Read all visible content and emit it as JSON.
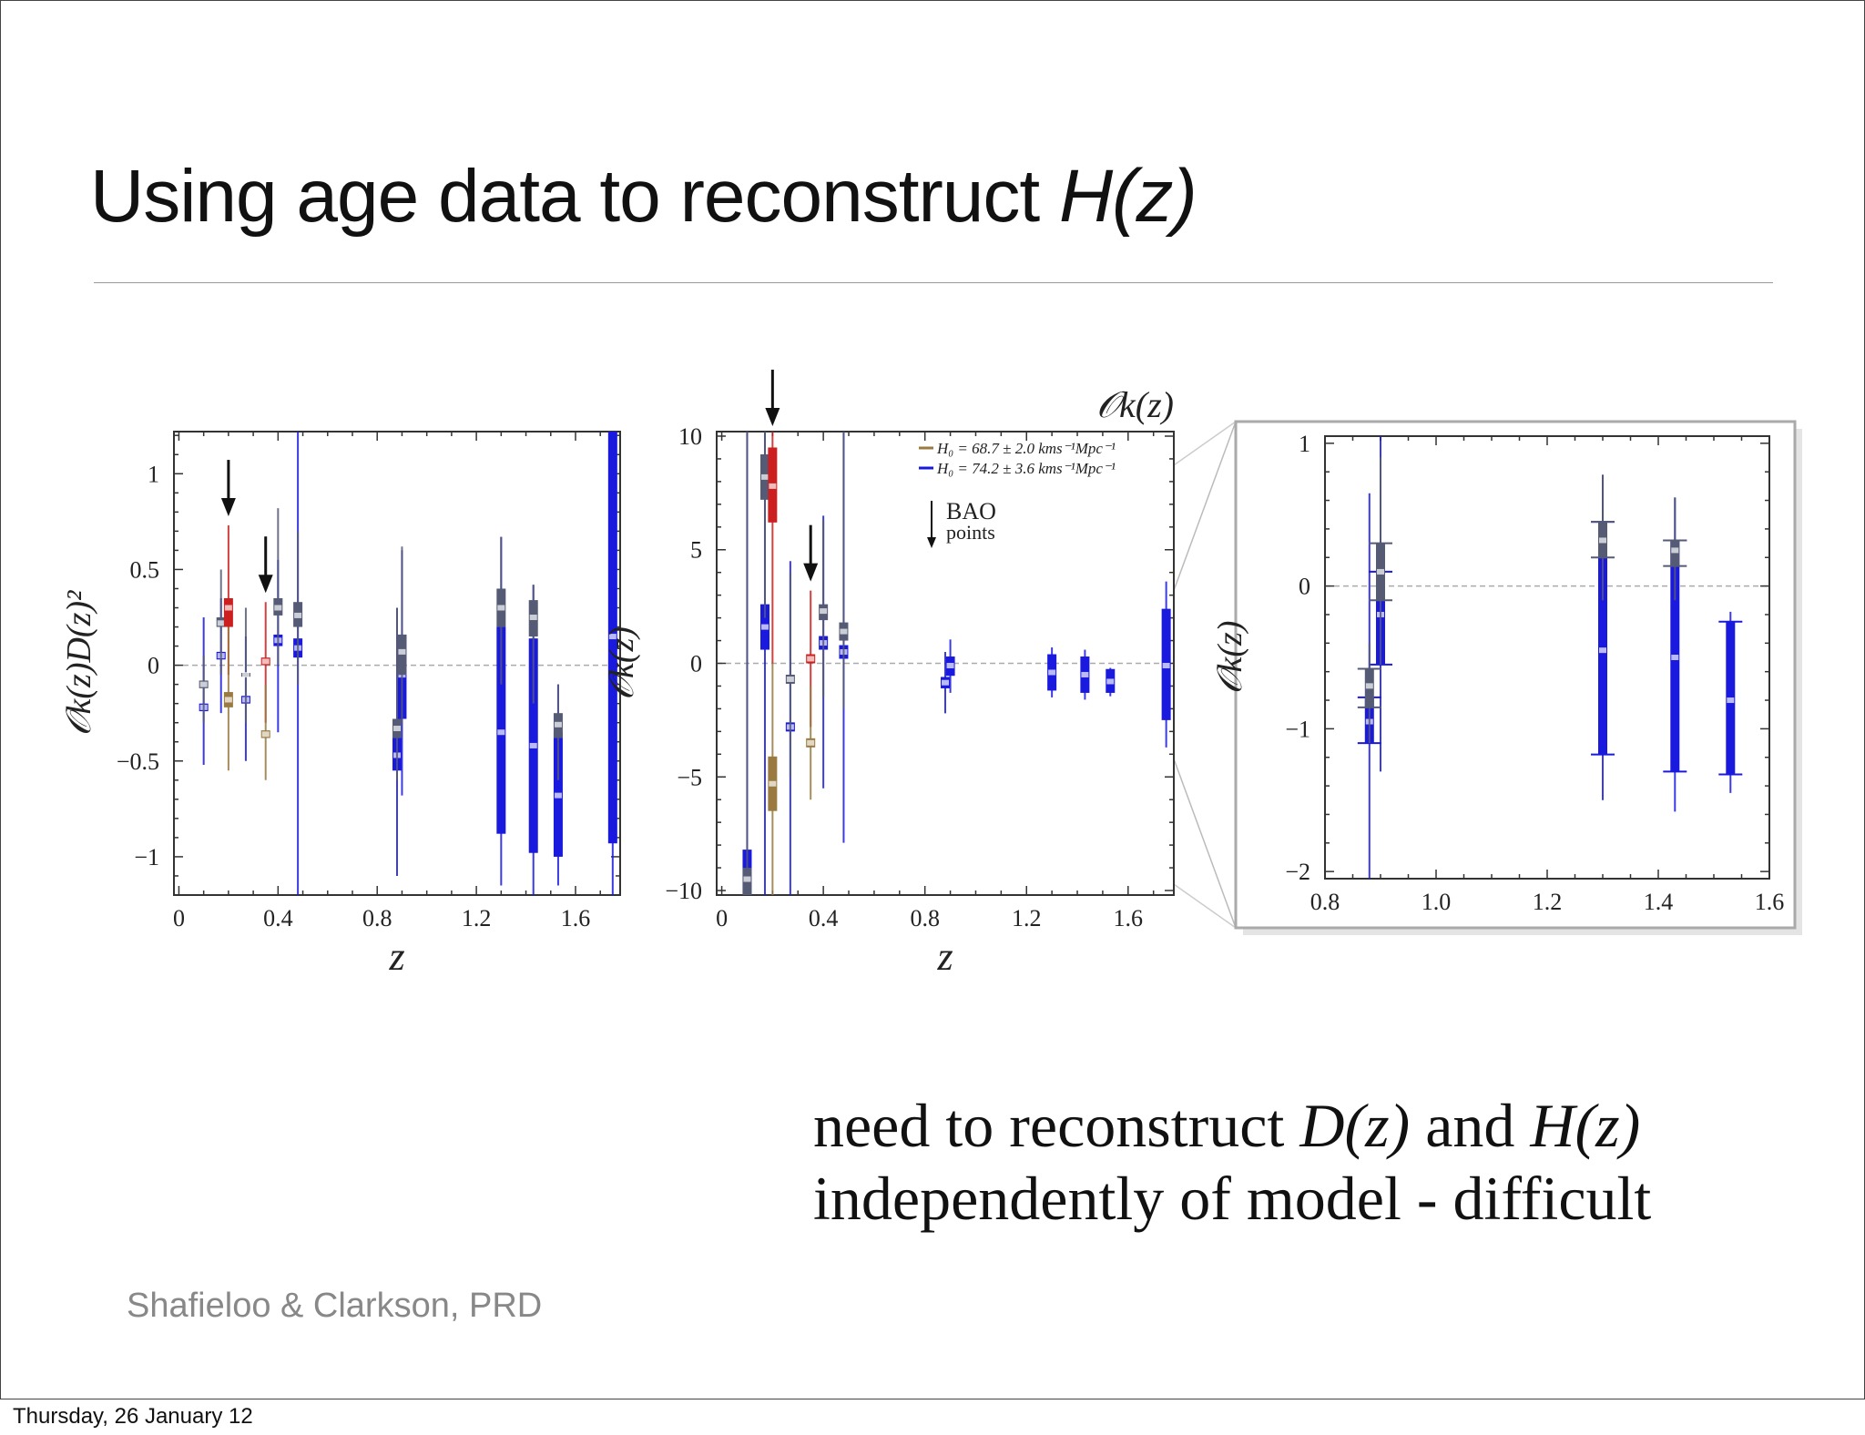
{
  "slide": {
    "title_plain": "Using age data to reconstruct ",
    "title_italic": "H(z)",
    "body_line1_a": "need to reconstruct ",
    "body_line1_b": "D(z)",
    "body_line1_c": " and ",
    "body_line1_d": "H(z)",
    "body_line2": "independently of model - difficult",
    "citation": "Shafieloo & Clarkson, PRD",
    "footer": "Thursday, 26 January 12"
  },
  "chart_data": [
    {
      "id": "left",
      "type": "scatter",
      "ylabel": "𝒪k(z)D(z)²",
      "xlabel": "z",
      "xlim": [
        -0.02,
        1.78
      ],
      "ylim": [
        -1.2,
        1.22
      ],
      "xticks": [
        0,
        0.4,
        0.8,
        1.2,
        1.6
      ],
      "xtick_labels": [
        "0",
        "0.4",
        "0.8",
        "1.2",
        "1.6"
      ],
      "yticks": [
        -1,
        -0.5,
        0,
        0.5,
        1
      ],
      "ytick_labels": [
        "−1",
        "−0.5",
        "0",
        "0.5",
        "1"
      ],
      "zero_line": true,
      "bao_arrows_x": [
        0.2,
        0.35
      ],
      "series": [
        {
          "color": "#1a1adf",
          "points": [
            {
              "x": 0.1,
              "y": -0.22,
              "lo1": -0.24,
              "hi1": -0.2,
              "lo2": -0.52,
              "hi2": 0.25
            },
            {
              "x": 0.17,
              "y": 0.05,
              "lo1": 0.03,
              "hi1": 0.07,
              "lo2": -0.25,
              "hi2": 0.35
            },
            {
              "x": 0.27,
              "y": -0.18,
              "lo1": -0.2,
              "hi1": -0.16,
              "lo2": -0.5,
              "hi2": 0.15
            },
            {
              "x": 0.4,
              "y": 0.13,
              "lo1": 0.1,
              "hi1": 0.16,
              "lo2": -0.35,
              "hi2": 0.55
            },
            {
              "x": 0.48,
              "y": 0.09,
              "lo1": 0.04,
              "hi1": 0.14,
              "lo2": -2.0,
              "hi2": 2.0
            },
            {
              "x": 0.88,
              "y": -0.47,
              "lo1": -0.55,
              "hi1": -0.38,
              "lo2": -1.1,
              "hi2": 0.3
            },
            {
              "x": 0.9,
              "y": -0.05,
              "lo1": -0.28,
              "hi1": 0.16,
              "lo2": -0.68,
              "hi2": 0.6
            },
            {
              "x": 1.3,
              "y": -0.35,
              "lo1": -0.88,
              "hi1": 0.2,
              "lo2": -1.15,
              "hi2": 0.67
            },
            {
              "x": 1.43,
              "y": -0.42,
              "lo1": -0.98,
              "hi1": 0.14,
              "lo2": -1.2,
              "hi2": 0.42
            },
            {
              "x": 1.53,
              "y": -0.68,
              "lo1": -1.0,
              "hi1": -0.35,
              "lo2": -1.15,
              "hi2": -0.1
            },
            {
              "x": 1.75,
              "y": 0.15,
              "lo1": -0.93,
              "hi1": 1.22,
              "lo2": -1.2,
              "hi2": 1.22
            }
          ]
        },
        {
          "color": "#555a75",
          "points": [
            {
              "x": 0.1,
              "y": -0.1,
              "lo1": -0.12,
              "hi1": -0.08,
              "lo2": -0.3,
              "hi2": 0.05
            },
            {
              "x": 0.17,
              "y": 0.22,
              "lo1": 0.2,
              "hi1": 0.25,
              "lo2": -0.05,
              "hi2": 0.5
            },
            {
              "x": 0.27,
              "y": -0.05,
              "lo1": -0.06,
              "hi1": -0.04,
              "lo2": -0.3,
              "hi2": 0.3
            },
            {
              "x": 0.4,
              "y": 0.3,
              "lo1": 0.26,
              "hi1": 0.35,
              "lo2": 0.0,
              "hi2": 0.82
            },
            {
              "x": 0.48,
              "y": 0.26,
              "lo1": 0.2,
              "hi1": 0.33,
              "lo2": -0.1,
              "hi2": 0.7
            },
            {
              "x": 0.88,
              "y": -0.33,
              "lo1": -0.38,
              "hi1": -0.28,
              "lo2": -0.6,
              "hi2": 0.3
            },
            {
              "x": 0.9,
              "y": 0.07,
              "lo1": -0.05,
              "hi1": 0.16,
              "lo2": -0.3,
              "hi2": 0.62
            },
            {
              "x": 1.3,
              "y": 0.3,
              "lo1": 0.2,
              "hi1": 0.4,
              "lo2": -0.1,
              "hi2": 0.67
            },
            {
              "x": 1.43,
              "y": 0.25,
              "lo1": 0.15,
              "hi1": 0.34,
              "lo2": -0.2,
              "hi2": 0.42
            },
            {
              "x": 1.53,
              "y": -0.31,
              "lo1": -0.38,
              "hi1": -0.25,
              "lo2": -0.6,
              "hi2": -0.1
            }
          ]
        },
        {
          "color": "#cc1f1f",
          "points": [
            {
              "x": 0.2,
              "y": 0.3,
              "lo1": 0.2,
              "hi1": 0.35,
              "lo2": -0.05,
              "hi2": 0.73
            },
            {
              "x": 0.35,
              "y": 0.02,
              "lo1": 0.0,
              "hi1": 0.04,
              "lo2": -0.3,
              "hi2": 0.33
            }
          ]
        },
        {
          "color": "#9a7a40",
          "points": [
            {
              "x": 0.2,
              "y": -0.18,
              "lo1": -0.22,
              "hi1": -0.14,
              "lo2": -0.55,
              "hi2": 0.2
            },
            {
              "x": 0.35,
              "y": -0.36,
              "lo1": -0.38,
              "hi1": -0.34,
              "lo2": -0.6,
              "hi2": -0.1
            }
          ]
        }
      ]
    },
    {
      "id": "middle",
      "type": "scatter",
      "title": "𝒪k(z)",
      "ylabel": "𝒪k(z)",
      "xlabel": "z",
      "xlim": [
        -0.02,
        1.78
      ],
      "ylim": [
        -10.2,
        10.2
      ],
      "xticks": [
        0,
        0.4,
        0.8,
        1.2,
        1.6
      ],
      "xtick_labels": [
        "0",
        "0.4",
        "0.8",
        "1.2",
        "1.6"
      ],
      "yticks": [
        -10,
        -5,
        0,
        5,
        10
      ],
      "ytick_labels": [
        "−10",
        "−5",
        "0",
        "5",
        "10"
      ],
      "zero_line": true,
      "bao_arrows_x": [
        0.2,
        0.35
      ],
      "legend": {
        "position": "top-right",
        "entries": [
          {
            "color": "#9a7a40",
            "label": "H₀ = 68.7 ± 2.0 kms⁻¹Mpc⁻¹"
          },
          {
            "color": "#1a1adf",
            "label": "H₀ = 74.2 ± 3.6 kms⁻¹Mpc⁻¹"
          }
        ],
        "arrow_label_1": "BAO",
        "arrow_label_2": "points"
      },
      "zoom_box": {
        "x": [
          0.8,
          1.6
        ],
        "y": [
          -2,
          1
        ]
      },
      "series": [
        {
          "color": "#1a1adf",
          "points": [
            {
              "x": 0.1,
              "y": -9.5,
              "lo1": -10.2,
              "hi1": -8.2,
              "lo2": -10.2,
              "hi2": 10.2
            },
            {
              "x": 0.17,
              "y": 1.6,
              "lo1": 0.6,
              "hi1": 2.6,
              "lo2": -10.2,
              "hi2": 10.2
            },
            {
              "x": 0.27,
              "y": -2.8,
              "lo1": -3.0,
              "hi1": -2.6,
              "lo2": -10.2,
              "hi2": 4.5
            },
            {
              "x": 0.4,
              "y": 0.9,
              "lo1": 0.6,
              "hi1": 1.2,
              "lo2": -5.5,
              "hi2": 6.5
            },
            {
              "x": 0.48,
              "y": 0.5,
              "lo1": 0.2,
              "hi1": 0.8,
              "lo2": -7.9,
              "hi2": 10.2
            },
            {
              "x": 0.88,
              "y": -0.85,
              "lo1": -1.1,
              "hi1": -0.6,
              "lo2": -2.2,
              "hi2": 0.5
            },
            {
              "x": 0.9,
              "y": -0.1,
              "lo1": -0.55,
              "hi1": 0.3,
              "lo2": -1.3,
              "hi2": 1.05
            },
            {
              "x": 1.3,
              "y": -0.4,
              "lo1": -1.2,
              "hi1": 0.4,
              "lo2": -1.5,
              "hi2": 0.7
            },
            {
              "x": 1.43,
              "y": -0.5,
              "lo1": -1.3,
              "hi1": 0.3,
              "lo2": -1.6,
              "hi2": 0.6
            },
            {
              "x": 1.53,
              "y": -0.8,
              "lo1": -1.3,
              "hi1": -0.25,
              "lo2": -1.45,
              "hi2": -0.2
            },
            {
              "x": 1.75,
              "y": -0.1,
              "lo1": -2.5,
              "hi1": 2.4,
              "lo2": -3.7,
              "hi2": 3.6
            }
          ]
        },
        {
          "color": "#555a75",
          "points": [
            {
              "x": 0.1,
              "y": -9.5,
              "lo1": -10.2,
              "hi1": -9.0,
              "lo2": -10.2,
              "hi2": 10.2
            },
            {
              "x": 0.17,
              "y": 8.2,
              "lo1": 7.2,
              "hi1": 9.2,
              "lo2": 2.0,
              "hi2": 10.2
            },
            {
              "x": 0.27,
              "y": -0.7,
              "lo1": -0.9,
              "hi1": -0.5,
              "lo2": -5.0,
              "hi2": 4.0
            },
            {
              "x": 0.4,
              "y": 2.3,
              "lo1": 1.9,
              "hi1": 2.6,
              "lo2": -1.5,
              "hi2": 6.3
            },
            {
              "x": 0.48,
              "y": 1.4,
              "lo1": 1.0,
              "hi1": 1.8,
              "lo2": -2.0,
              "hi2": 10.2
            }
          ]
        },
        {
          "color": "#cc1f1f",
          "points": [
            {
              "x": 0.2,
              "y": 7.8,
              "lo1": 6.2,
              "hi1": 9.5,
              "lo2": 0.0,
              "hi2": 10.2
            },
            {
              "x": 0.35,
              "y": 0.2,
              "lo1": 0.0,
              "hi1": 0.4,
              "lo2": -2.8,
              "hi2": 3.2
            }
          ]
        },
        {
          "color": "#9a7a40",
          "points": [
            {
              "x": 0.2,
              "y": -5.3,
              "lo1": -6.5,
              "hi1": -4.1,
              "lo2": -10.2,
              "hi2": 0.0
            },
            {
              "x": 0.35,
              "y": -3.5,
              "lo1": -3.7,
              "hi1": -3.3,
              "lo2": -6.0,
              "hi2": -1.0
            }
          ]
        }
      ]
    },
    {
      "id": "right",
      "type": "scatter",
      "ylabel": "𝒪k(z)",
      "xlim": [
        0.8,
        1.6
      ],
      "ylim": [
        -2.05,
        1.05
      ],
      "xticks": [
        0.8,
        1.0,
        1.2,
        1.4,
        1.6
      ],
      "xtick_labels": [
        "0.8",
        "1.0",
        "1.2",
        "1.4",
        "1.6"
      ],
      "yticks": [
        -2,
        -1,
        0,
        1
      ],
      "ytick_labels": [
        "−2",
        "−1",
        "0",
        "1"
      ],
      "zero_line": true,
      "series": [
        {
          "color": "#1a1adf",
          "points": [
            {
              "x": 0.88,
              "y": -0.95,
              "lo1": -1.1,
              "hi1": -0.78,
              "lo2": -2.05,
              "hi2": 0.65
            },
            {
              "x": 0.9,
              "y": -0.2,
              "lo1": -0.55,
              "hi1": 0.1,
              "lo2": -1.3,
              "hi2": 1.05
            },
            {
              "x": 1.3,
              "y": -0.45,
              "lo1": -1.18,
              "hi1": 0.45,
              "lo2": -1.5,
              "hi2": 0.78
            },
            {
              "x": 1.43,
              "y": -0.5,
              "lo1": -1.3,
              "hi1": 0.32,
              "lo2": -1.58,
              "hi2": 0.62
            },
            {
              "x": 1.53,
              "y": -0.8,
              "lo1": -1.32,
              "hi1": -0.25,
              "lo2": -1.45,
              "hi2": -0.18
            }
          ]
        },
        {
          "color": "#555a75",
          "points": [
            {
              "x": 0.88,
              "y": -0.7,
              "lo1": -0.85,
              "hi1": -0.58,
              "lo2": -1.1,
              "hi2": -0.4
            },
            {
              "x": 0.9,
              "y": 0.1,
              "lo1": -0.1,
              "hi1": 0.3,
              "lo2": -0.55,
              "hi2": 0.9
            },
            {
              "x": 1.3,
              "y": 0.32,
              "lo1": 0.2,
              "hi1": 0.45,
              "lo2": -0.1,
              "hi2": 0.78
            },
            {
              "x": 1.43,
              "y": 0.25,
              "lo1": 0.14,
              "hi1": 0.32,
              "lo2": -0.1,
              "hi2": 0.62
            }
          ]
        }
      ]
    }
  ]
}
